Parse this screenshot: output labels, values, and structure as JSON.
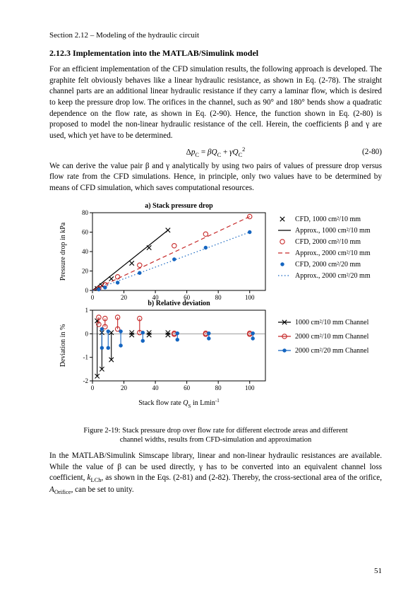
{
  "running_head": "Section 2.12 – Modeling of the hydraulic circuit",
  "section_heading": "2.12.3   Implementation into the MATLAB/Simulink model",
  "para1": "For an efficient implementation of the CFD simulation results, the following approach is developed. The graphite felt obviously behaves like a linear hydraulic resistance, as shown in Eq. (2-78). The straight channel parts are an additional linear hydraulic resistance if they carry a laminar flow, which is desired to keep the pressure drop low. The orifices in the channel, such as 90° and 180° bends show a quadratic dependence on the flow rate, as shown in Eq. (2-90). Hence, the function shown in Eq. (2-80) is proposed to model the non-linear hydraulic resistance of the cell. Herein, the coefficients β and γ are used, which yet have to be determined.",
  "equation_main": "ΔpC = βQC + γQC²",
  "equation_number": "(2-80)",
  "para2": "We can derive the value pair β and γ analytically by using two pairs of values of pressure drop versus flow rate from the CFD simulations. Hence, in principle, only two values have to be determined by means of CFD simulation, which saves computational resources.",
  "para3_a": "In the MATLAB/Simulink Simscape library, linear and non-linear hydraulic resistances are available. While the value of β can be used directly, γ has to be converted into an equivalent channel loss coefficient, ",
  "para3_b": ", as shown in the Eqs. (2-81) and (2-82). Thereby, the cross-sectional area of the orifice, ",
  "para3_c": ", can be set to unity.",
  "k_lch": "kLCh",
  "a_orifice": "AOrifice",
  "fig_caption_l1": "Figure 2-19: Stack pressure drop over flow rate for different electrode areas and different",
  "fig_caption_l2": "channel widths, results from CFD-simulation and approximation",
  "pagenum": "51",
  "chart_a": {
    "title": "a) Stack pressure drop",
    "ylabel": "Pressure drop in kPa",
    "xlim": [
      0,
      110
    ],
    "ylim": [
      0,
      80
    ],
    "xticks": [
      0,
      20,
      40,
      60,
      80,
      100
    ],
    "yticks": [
      0,
      20,
      40,
      60,
      80
    ],
    "series": [
      {
        "name": "CFD, 1000 cm²/10 mm",
        "type": "scatter",
        "marker": "x",
        "color": "#000000",
        "x": [
          3,
          6,
          12,
          25,
          36,
          48
        ],
        "y": [
          2,
          5,
          12,
          28,
          44,
          62
        ]
      },
      {
        "name": "Approx., 1000 cm²/10 mm",
        "type": "line",
        "dash": "solid",
        "color": "#000000",
        "x": [
          0,
          48
        ],
        "y": [
          0,
          62
        ]
      },
      {
        "name": "CFD, 2000 cm²/10 mm",
        "type": "scatter",
        "marker": "circle",
        "color": "#c62828",
        "x": [
          4,
          8,
          16,
          30,
          52,
          72,
          100
        ],
        "y": [
          2,
          6,
          14,
          26,
          46,
          58,
          76
        ]
      },
      {
        "name": "Approx., 2000 cm²/10 mm",
        "type": "line",
        "dash": "dashed",
        "color": "#c62828",
        "x": [
          0,
          100
        ],
        "y": [
          0,
          76
        ]
      },
      {
        "name": "CFD, 2000 cm²/20 mm",
        "type": "scatter",
        "marker": "dot",
        "color": "#1565c0",
        "x": [
          4,
          8,
          16,
          30,
          52,
          72,
          100
        ],
        "y": [
          1,
          3,
          8,
          18,
          32,
          44,
          60
        ]
      },
      {
        "name": "Approx., 2000 cm²/20 mm",
        "type": "line",
        "dash": "dotted",
        "color": "#1565c0",
        "x": [
          0,
          100
        ],
        "y": [
          0,
          60
        ]
      }
    ],
    "legend_items": [
      {
        "marker": "x",
        "color": "#000000",
        "label": "CFD, 1000 cm²/10 mm"
      },
      {
        "line": "solid",
        "color": "#000000",
        "label": "Approx., 1000 cm²/10 mm"
      },
      {
        "marker": "circle",
        "color": "#c62828",
        "label": "CFD, 2000 cm²/10 mm"
      },
      {
        "line": "dashed",
        "color": "#c62828",
        "label": "Approx., 2000 cm²/10 mm"
      },
      {
        "marker": "dot",
        "color": "#1565c0",
        "label": "CFD, 2000 cm²/20 mm"
      },
      {
        "line": "dotted",
        "color": "#1565c0",
        "label": "Approx., 2000 cm²/20 mm"
      }
    ]
  },
  "chart_b": {
    "title": "b) Relative deviation",
    "ylabel": "Deviation in %",
    "xlabel_a": "Stack flow rate ",
    "xlabel_q": "Q",
    "xlabel_sub": "S",
    "xlabel_b": " in Lmin",
    "xlim": [
      0,
      110
    ],
    "ylim": [
      -2,
      1
    ],
    "xticks": [
      0,
      20,
      40,
      60,
      80,
      100
    ],
    "yticks": [
      -2,
      -1,
      0,
      1
    ],
    "zero_line_y": 0,
    "series": [
      {
        "name": "1000 cm²/10 mm Channel",
        "marker": "x",
        "color": "#000000",
        "data": [
          {
            "x": 3,
            "t": 0.55,
            "b": -1.8
          },
          {
            "x": 6,
            "t": 0.05,
            "b": -1.5
          },
          {
            "x": 12,
            "t": 0.05,
            "b": -1.1
          },
          {
            "x": 25,
            "t": 0.05,
            "b": -0.05
          },
          {
            "x": 36,
            "t": 0.05,
            "b": -0.05
          },
          {
            "x": 48,
            "t": 0.05,
            "b": -0.05
          }
        ]
      },
      {
        "name": "2000 cm²/10 mm Channel",
        "marker": "circle",
        "color": "#c62828",
        "data": [
          {
            "x": 4,
            "t": 0.7,
            "b": 0.4
          },
          {
            "x": 8,
            "t": 0.65,
            "b": 0.3
          },
          {
            "x": 16,
            "t": 0.7,
            "b": 0.2
          },
          {
            "x": 30,
            "t": 0.65,
            "b": 0.05
          },
          {
            "x": 52,
            "t": 0.02,
            "b": -0.02
          },
          {
            "x": 72,
            "t": 0.02,
            "b": -0.02
          },
          {
            "x": 100,
            "t": 0.02,
            "b": -0.02
          }
        ]
      },
      {
        "name": "2000 cm²/20 mm Channel",
        "marker": "dot",
        "color": "#1565c0",
        "data": [
          {
            "x": 6,
            "t": 0.2,
            "b": -0.6
          },
          {
            "x": 10,
            "t": 0.1,
            "b": -0.6
          },
          {
            "x": 18,
            "t": 0.1,
            "b": -0.5
          },
          {
            "x": 32,
            "t": 0.05,
            "b": -0.3
          },
          {
            "x": 54,
            "t": 0.02,
            "b": -0.25
          },
          {
            "x": 74,
            "t": 0.02,
            "b": -0.2
          },
          {
            "x": 102,
            "t": 0.02,
            "b": -0.2
          }
        ]
      }
    ],
    "legend_items": [
      {
        "marker": "x",
        "color": "#000000",
        "label": "1000 cm²/10 mm Channel"
      },
      {
        "marker": "circle",
        "color": "#c62828",
        "label": "2000 cm²/10 mm Channel"
      },
      {
        "marker": "dot",
        "color": "#1565c0",
        "label": "2000 cm²/20 mm Channel"
      }
    ]
  },
  "style": {
    "axis_color": "#000000",
    "tick_font_size": 9,
    "label_font_size": 10,
    "legend_font_size": 10,
    "plot_font": "Times New Roman"
  }
}
